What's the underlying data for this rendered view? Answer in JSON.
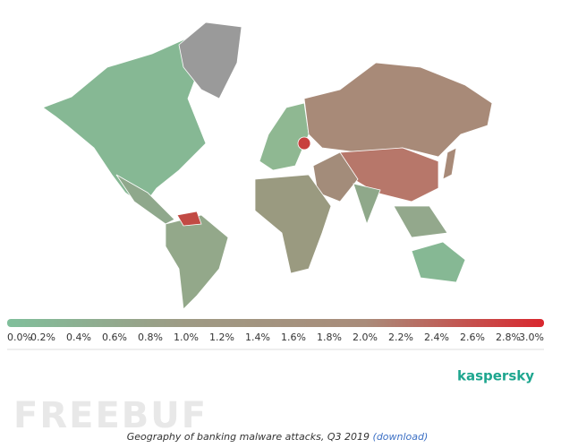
{
  "legend": {
    "ticks": [
      "0.0%",
      "0.2%",
      "0.4%",
      "0.6%",
      "0.8%",
      "1.0%",
      "1.2%",
      "1.4%",
      "1.6%",
      "1.8%",
      "2.0%",
      "2.2%",
      "2.4%",
      "2.6%",
      "2.8%",
      "3.0%"
    ],
    "colors": [
      "#80bf9b",
      "#9e9a84",
      "#a98c7a",
      "#d9272e"
    ]
  },
  "brand": "kaspersky",
  "watermark": "FREEBUF",
  "caption": {
    "text": "Geography of banking malware attacks, Q3 2019",
    "link": "(download)"
  }
}
